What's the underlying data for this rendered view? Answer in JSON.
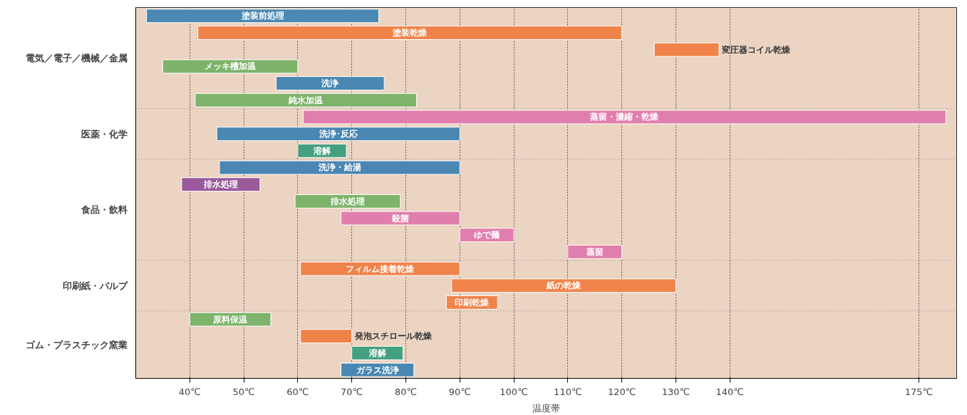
{
  "chart_data": {
    "type": "bar",
    "orientation": "horizontal",
    "xlabel": "温度帯",
    "grid": "x",
    "annotations": [
      "電気／電子／機械／金属",
      "医薬・化学",
      "食品・飲料",
      "印刷紙・パルプ",
      "ゴム・プラスチック窯業"
    ],
    "categories": [
      "塗装前処理",
      "塗装乾燥",
      "変圧器コイル乾燥",
      "メッキ槽加温",
      "洗浄",
      "純水加温",
      "蒸留・濃縮・乾燥",
      "洗浄･反応",
      "溶解",
      "洗浄・給湯",
      "排水処理",
      "排水処理",
      "殺菌",
      "ゆで麺",
      "蒸留",
      "フィルム接着乾燥",
      "紙の乾燥",
      "印刷乾燥",
      "原料保温",
      "発泡スチロール乾燥",
      "溶解",
      "ガラス洗浄"
    ],
    "xlim": [
      30,
      182
    ],
    "xticks": [
      {
        "value": 40,
        "label": "40℃"
      },
      {
        "value": 50,
        "label": "50℃"
      },
      {
        "value": 60,
        "label": "60℃"
      },
      {
        "value": 70,
        "label": "70℃"
      },
      {
        "value": 80,
        "label": "80℃"
      },
      {
        "value": 90,
        "label": "90℃"
      },
      {
        "value": 100,
        "label": "100℃"
      },
      {
        "value": 110,
        "label": "110℃"
      },
      {
        "value": 120,
        "label": "120℃"
      },
      {
        "value": 130,
        "label": "130℃"
      },
      {
        "value": 140,
        "label": "140℃"
      },
      {
        "value": 175,
        "label": "175℃"
      }
    ],
    "series": [
      {
        "values": [
          43,
          78.5,
          12,
          25,
          20,
          41,
          null,
          null,
          null,
          null,
          null,
          null,
          null,
          null,
          null,
          null,
          null,
          null,
          null,
          null,
          null,
          null
        ],
        "base": [
          32,
          41.5,
          126,
          35,
          56,
          41,
          null,
          null,
          null,
          null,
          null,
          null,
          null,
          null,
          null,
          null,
          null,
          null,
          null,
          null,
          null,
          null
        ],
        "colors": [
          "#4a87b2",
          "#f0834a",
          "#f0834a",
          "#7db36a",
          "#4a87b2",
          "#7db36a",
          null,
          null,
          null,
          null,
          null,
          null,
          null,
          null,
          null,
          null,
          null,
          null,
          null,
          null,
          null,
          null
        ]
      },
      {
        "values": [
          null,
          null,
          null,
          null,
          null,
          null,
          119,
          45,
          9,
          null,
          null,
          null,
          null,
          null,
          null,
          null,
          null,
          null,
          null,
          null,
          null,
          null
        ],
        "base": [
          null,
          null,
          null,
          null,
          null,
          null,
          61,
          45,
          60,
          null,
          null,
          null,
          null,
          null,
          null,
          null,
          null,
          null,
          null,
          null,
          null,
          null
        ],
        "colors": [
          null,
          null,
          null,
          null,
          null,
          null,
          "#e07fae",
          "#4a87b2",
          "#45a07f",
          null,
          null,
          null,
          null,
          null,
          null,
          null,
          null,
          null,
          null,
          null,
          null,
          null
        ]
      },
      {
        "values": [
          null,
          null,
          null,
          null,
          null,
          null,
          null,
          null,
          null,
          44.5,
          14.5,
          19.5,
          22,
          10,
          10,
          null,
          null,
          null,
          null,
          null,
          null,
          null
        ],
        "base": [
          null,
          null,
          null,
          null,
          null,
          null,
          null,
          null,
          null,
          45.5,
          38.5,
          59.5,
          68,
          90,
          110,
          null,
          null,
          null,
          null,
          null,
          null,
          null
        ],
        "colors": [
          null,
          null,
          null,
          null,
          null,
          null,
          null,
          null,
          null,
          "#4a87b2",
          "#9a5a9c",
          "#7db36a",
          "#e07fae",
          "#e07fae",
          "#e07fae",
          null,
          null,
          null,
          null,
          null,
          null,
          null
        ]
      },
      {
        "values": [
          null,
          null,
          null,
          null,
          null,
          null,
          null,
          null,
          null,
          null,
          null,
          null,
          null,
          null,
          null,
          29.5,
          41.5,
          9.5,
          null,
          null,
          null,
          null
        ],
        "base": [
          null,
          null,
          null,
          null,
          null,
          null,
          null,
          null,
          null,
          null,
          null,
          null,
          null,
          null,
          null,
          60.5,
          88.5,
          87.5,
          null,
          null,
          null,
          null
        ],
        "colors": [
          null,
          null,
          null,
          null,
          null,
          null,
          null,
          null,
          null,
          null,
          null,
          null,
          null,
          null,
          null,
          "#f0834a",
          "#f0834a",
          "#f0834a",
          null,
          null,
          null,
          null
        ]
      },
      {
        "values": [
          null,
          null,
          null,
          null,
          null,
          null,
          null,
          null,
          null,
          null,
          null,
          null,
          null,
          null,
          null,
          null,
          null,
          null,
          15,
          9.5,
          9.5,
          13.5
        ],
        "base": [
          null,
          null,
          null,
          null,
          null,
          null,
          null,
          null,
          null,
          null,
          null,
          null,
          null,
          null,
          null,
          null,
          null,
          null,
          40,
          60.5,
          70,
          68
        ],
        "colors": [
          null,
          null,
          null,
          null,
          null,
          null,
          null,
          null,
          null,
          null,
          null,
          null,
          null,
          null,
          null,
          null,
          null,
          null,
          "#7db36a",
          "#f0834a",
          "#45a07f",
          "#4a87b2"
        ]
      }
    ]
  }
}
